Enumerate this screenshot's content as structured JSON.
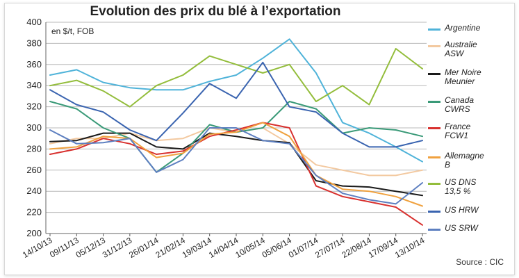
{
  "chart_data": {
    "type": "line",
    "title": "Evolution des prix du blé à l’exportation",
    "unit_note": "en $/t, FOB",
    "source": "Source : CIC",
    "ylim": [
      200,
      400
    ],
    "yticks": [
      "200",
      "220",
      "240",
      "260",
      "280",
      "300",
      "320",
      "340",
      "360",
      "380",
      "400"
    ],
    "x": [
      "14/10/13",
      "09/11/13",
      "05/12/13",
      "31/12/13",
      "26/01/14",
      "21/02/14",
      "19/03/14",
      "14/04/14",
      "10/05/14",
      "05/06/14",
      "01/07/14",
      "27/07/14",
      "22/08/14",
      "17/09/14",
      "13/10/14"
    ],
    "grid": true,
    "legend": "right",
    "series": [
      {
        "name": "Argentine",
        "color": "#4fb3d9",
        "values": [
          350,
          355,
          343,
          338,
          336,
          336,
          344,
          350,
          366,
          384,
          352,
          305,
          295,
          282,
          268
        ]
      },
      {
        "name": "Australie\nASW",
        "color": "#f3c9a0",
        "values": [
          285,
          290,
          290,
          295,
          288,
          290,
          300,
          296,
          300,
          285,
          265,
          260,
          255,
          255,
          260
        ]
      },
      {
        "name": "Mer Noire\nMeunier",
        "color": "#1a1a1a",
        "values": [
          287,
          288,
          295,
          295,
          282,
          280,
          295,
          292,
          288,
          286,
          250,
          245,
          244,
          240,
          236
        ]
      },
      {
        "name": "Canada\nCWRS",
        "color": "#3a9a78",
        "values": [
          325,
          318,
          300,
          290,
          258,
          276,
          303,
          296,
          300,
          325,
          318,
          295,
          300,
          298,
          292
        ]
      },
      {
        "name": "France\nFCW1",
        "color": "#d8312f",
        "values": [
          275,
          280,
          290,
          285,
          275,
          278,
          292,
          298,
          305,
          300,
          245,
          235,
          230,
          225,
          208
        ]
      },
      {
        "name": "Allemagne\nB",
        "color": "#f0a13e",
        "values": [
          280,
          282,
          292,
          290,
          272,
          276,
          294,
          296,
          305,
          292,
          255,
          242,
          240,
          235,
          226
        ]
      },
      {
        "name": "US DNS\n13,5 %",
        "color": "#93bd3b",
        "values": [
          340,
          345,
          335,
          320,
          340,
          350,
          368,
          360,
          352,
          360,
          325,
          340,
          322,
          375,
          356
        ]
      },
      {
        "name": "US HRW",
        "color": "#3a64b0",
        "values": [
          336,
          322,
          315,
          298,
          288,
          314,
          342,
          328,
          362,
          320,
          315,
          295,
          282,
          282,
          288
        ]
      },
      {
        "name": "US SRW",
        "color": "#5d7fc0",
        "values": [
          298,
          285,
          286,
          290,
          258,
          270,
          300,
          300,
          288,
          285,
          255,
          238,
          232,
          228,
          248
        ]
      }
    ]
  }
}
